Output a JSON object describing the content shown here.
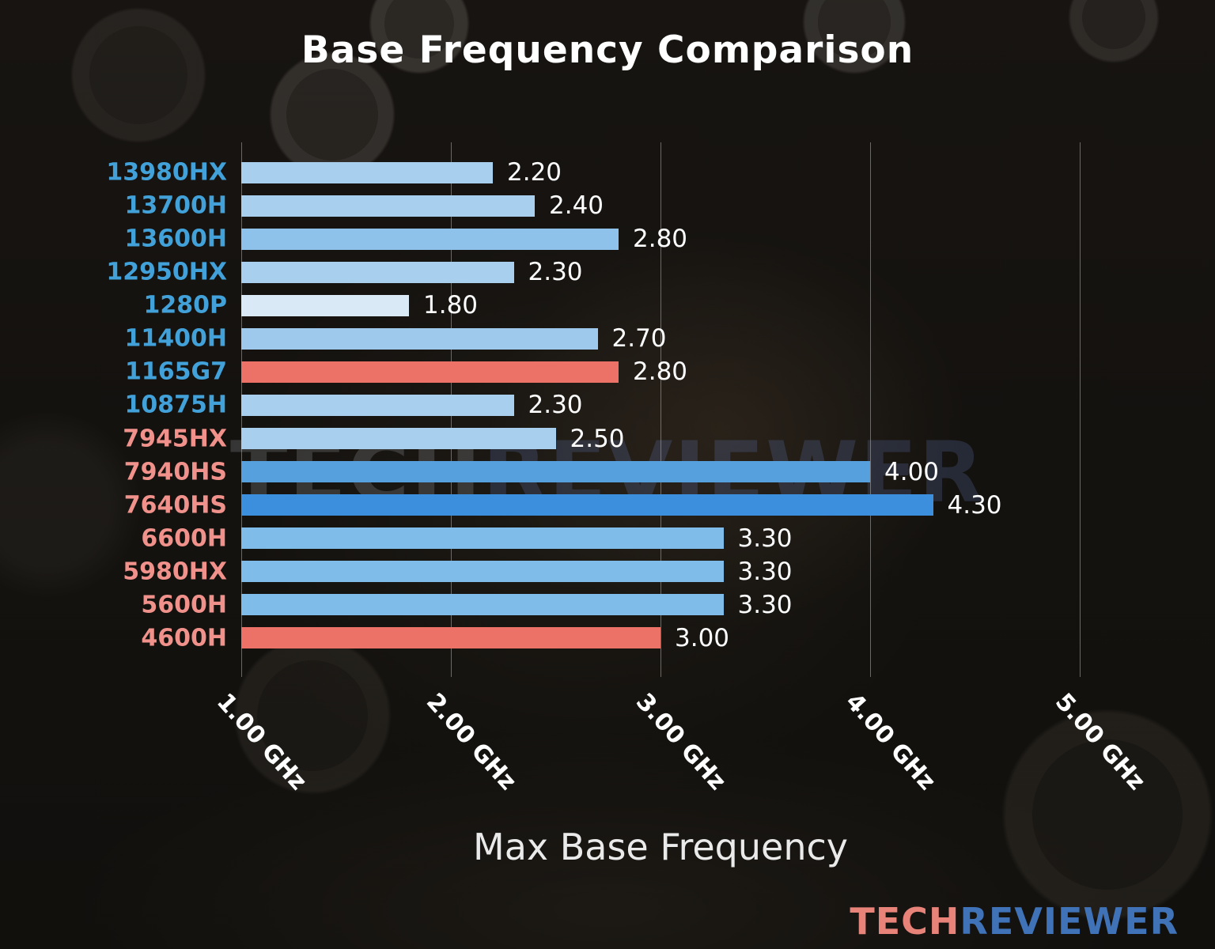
{
  "title": "Base Frequency Comparison",
  "watermark": {
    "part1": "TECH",
    "part2": "REVIEWER"
  },
  "logo": {
    "part1": "TECH",
    "part2": "REVIEWER",
    "tech_color": "#e8837a",
    "reviewer_color": "#3f72b6"
  },
  "chart_data": {
    "type": "bar",
    "orientation": "horizontal",
    "title": "Base Frequency Comparison",
    "xlabel": "Max Base Frequency",
    "xlim": [
      1.0,
      5.0
    ],
    "grid": true,
    "legend": "none",
    "x_ticks": [
      {
        "value": 1.0,
        "label": "1.00 GHz"
      },
      {
        "value": 2.0,
        "label": "2.00 GHz"
      },
      {
        "value": 3.0,
        "label": "3.00 GHz"
      },
      {
        "value": 4.0,
        "label": "4.00 GHz"
      },
      {
        "value": 5.0,
        "label": "5.00 GHz"
      }
    ],
    "bars": [
      {
        "category": "13980HX",
        "value": 2.2,
        "value_label": "2.20",
        "bar_color": "#a9cfee",
        "category_color": "#41a1d8"
      },
      {
        "category": "13700H",
        "value": 2.4,
        "value_label": "2.40",
        "bar_color": "#a9cfee",
        "category_color": "#41a1d8"
      },
      {
        "category": "13600H",
        "value": 2.8,
        "value_label": "2.80",
        "bar_color": "#8ec2ea",
        "category_color": "#41a1d8"
      },
      {
        "category": "12950HX",
        "value": 2.3,
        "value_label": "2.30",
        "bar_color": "#a9cfee",
        "category_color": "#41a1d8"
      },
      {
        "category": "1280P",
        "value": 1.8,
        "value_label": "1.80",
        "bar_color": "#d9e9f6",
        "category_color": "#41a1d8"
      },
      {
        "category": "11400H",
        "value": 2.7,
        "value_label": "2.70",
        "bar_color": "#9fc9ec",
        "category_color": "#41a1d8"
      },
      {
        "category": "1165G7",
        "value": 2.8,
        "value_label": "2.80",
        "bar_color": "#ec7166",
        "category_color": "#41a1d8"
      },
      {
        "category": "10875H",
        "value": 2.3,
        "value_label": "2.30",
        "bar_color": "#a9cfee",
        "category_color": "#41a1d8"
      },
      {
        "category": "7945HX",
        "value": 2.5,
        "value_label": "2.50",
        "bar_color": "#a9cfee",
        "category_color": "#f0928b"
      },
      {
        "category": "7940HS",
        "value": 4.0,
        "value_label": "4.00",
        "bar_color": "#56a0dd",
        "category_color": "#f0928b"
      },
      {
        "category": "7640HS",
        "value": 4.3,
        "value_label": "4.30",
        "bar_color": "#3b8fdc",
        "category_color": "#f0928b"
      },
      {
        "category": "6600H",
        "value": 3.3,
        "value_label": "3.30",
        "bar_color": "#7fbce9",
        "category_color": "#f0928b"
      },
      {
        "category": "5980HX",
        "value": 3.3,
        "value_label": "3.30",
        "bar_color": "#7fbce9",
        "category_color": "#f0928b"
      },
      {
        "category": "5600H",
        "value": 3.3,
        "value_label": "3.30",
        "bar_color": "#7fbce9",
        "category_color": "#f0928b"
      },
      {
        "category": "4600H",
        "value": 3.0,
        "value_label": "3.00",
        "bar_color": "#ec7166",
        "category_color": "#f0928b"
      }
    ]
  }
}
